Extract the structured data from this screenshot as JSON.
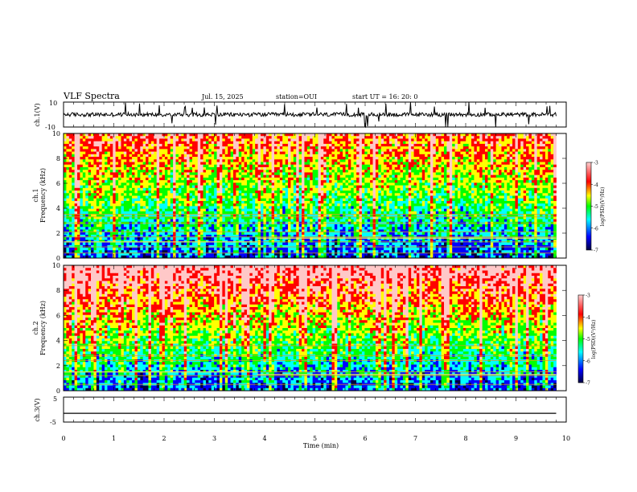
{
  "header": {
    "title": "VLF Spectra",
    "date": "Jul. 15, 2025",
    "station": "station=OUI",
    "start_ut": "start UT =  16: 20: 0"
  },
  "colors": {
    "trace": "#000000",
    "colorscale": [
      "#000040",
      "#0000ff",
      "#00ffff",
      "#00ff00",
      "#ffff00",
      "#ff0000",
      "#ffc8c8"
    ]
  },
  "chart_data": [
    {
      "id": "ch1-waveform",
      "type": "line",
      "ylabel": "ch.1(V)",
      "ylim": [
        -10,
        10
      ],
      "yticks": [
        "10",
        "-10"
      ],
      "xlim": [
        0,
        10
      ],
      "baseline": 0,
      "amplitude_typical": 2,
      "spike_max": 10
    },
    {
      "id": "ch1-spectrogram",
      "type": "heatmap",
      "ylabel_top": "ch.1",
      "ylabel": "Frequency (kHz)",
      "ylim": [
        0,
        10
      ],
      "yticks": [
        "0",
        "2",
        "4",
        "6",
        "8",
        "10"
      ],
      "xlim": [
        0,
        9.8
      ],
      "colorbar": {
        "label": "log(PSD)(V²/Hz)",
        "range": [
          -7,
          -3
        ],
        "ticks": [
          "-3",
          "-4",
          "-5",
          "-6",
          "-7"
        ]
      },
      "lines_khz": [
        0.4,
        0.9,
        1.3,
        1.7,
        2.1,
        2.8,
        3.3,
        3.5
      ],
      "shifted_line": {
        "before_min": 1.3,
        "after_min": 1.6,
        "shift_time_min": 3.85
      }
    },
    {
      "id": "ch2-spectrogram",
      "type": "heatmap",
      "ylabel_top": "ch.2",
      "ylabel": "Frequency (kHz)",
      "ylim": [
        0,
        10
      ],
      "yticks": [
        "0",
        "2",
        "4",
        "6",
        "8",
        "10"
      ],
      "xlim": [
        0,
        9.8
      ],
      "colorbar": {
        "label": "log(PSD)(V²/Hz)",
        "range": [
          -7,
          -3
        ],
        "ticks": [
          "-3",
          "-4",
          "-5",
          "-6",
          "-7"
        ]
      },
      "lines_khz": [
        0.5,
        1.2,
        1.5,
        2.4,
        2.8,
        3.6
      ],
      "shifted_line": {
        "before_min": 1.5,
        "after_min": 1.3,
        "shift_time_min": 3.85
      }
    },
    {
      "id": "ch3-waveform",
      "type": "line",
      "ylabel": "ch.3(V)",
      "ylim": [
        -5,
        5
      ],
      "yticks": [
        "5",
        "-5"
      ],
      "xlim": [
        0,
        10
      ],
      "x": [
        0,
        9.8
      ],
      "y": [
        -1.5,
        -1.5
      ]
    }
  ],
  "xaxis": {
    "label": "Time (min)",
    "ticks": [
      "0",
      "1",
      "2",
      "3",
      "4",
      "5",
      "6",
      "7",
      "8",
      "9",
      "10"
    ],
    "range": [
      0,
      10
    ]
  }
}
